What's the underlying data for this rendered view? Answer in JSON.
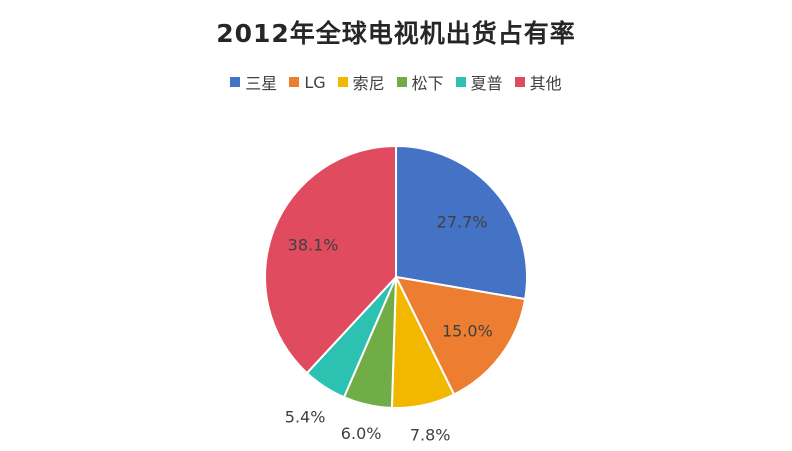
{
  "chart_data": {
    "type": "pie",
    "title": "2012年全球电视机出货占有率",
    "legend_position": "top",
    "categories": [
      "三星",
      "LG",
      "索尼",
      "松下",
      "夏普",
      "其他"
    ],
    "values": [
      27.7,
      15.0,
      7.8,
      6.0,
      5.4,
      38.1
    ],
    "data_labels": [
      "27.7%",
      "15.0%",
      "7.8%",
      "6.0%",
      "5.4%",
      "38.1%"
    ],
    "colors": [
      "#4472C4",
      "#ED7D31",
      "#F2B800",
      "#70AD47",
      "#2CC1B0",
      "#E04B5F"
    ]
  }
}
